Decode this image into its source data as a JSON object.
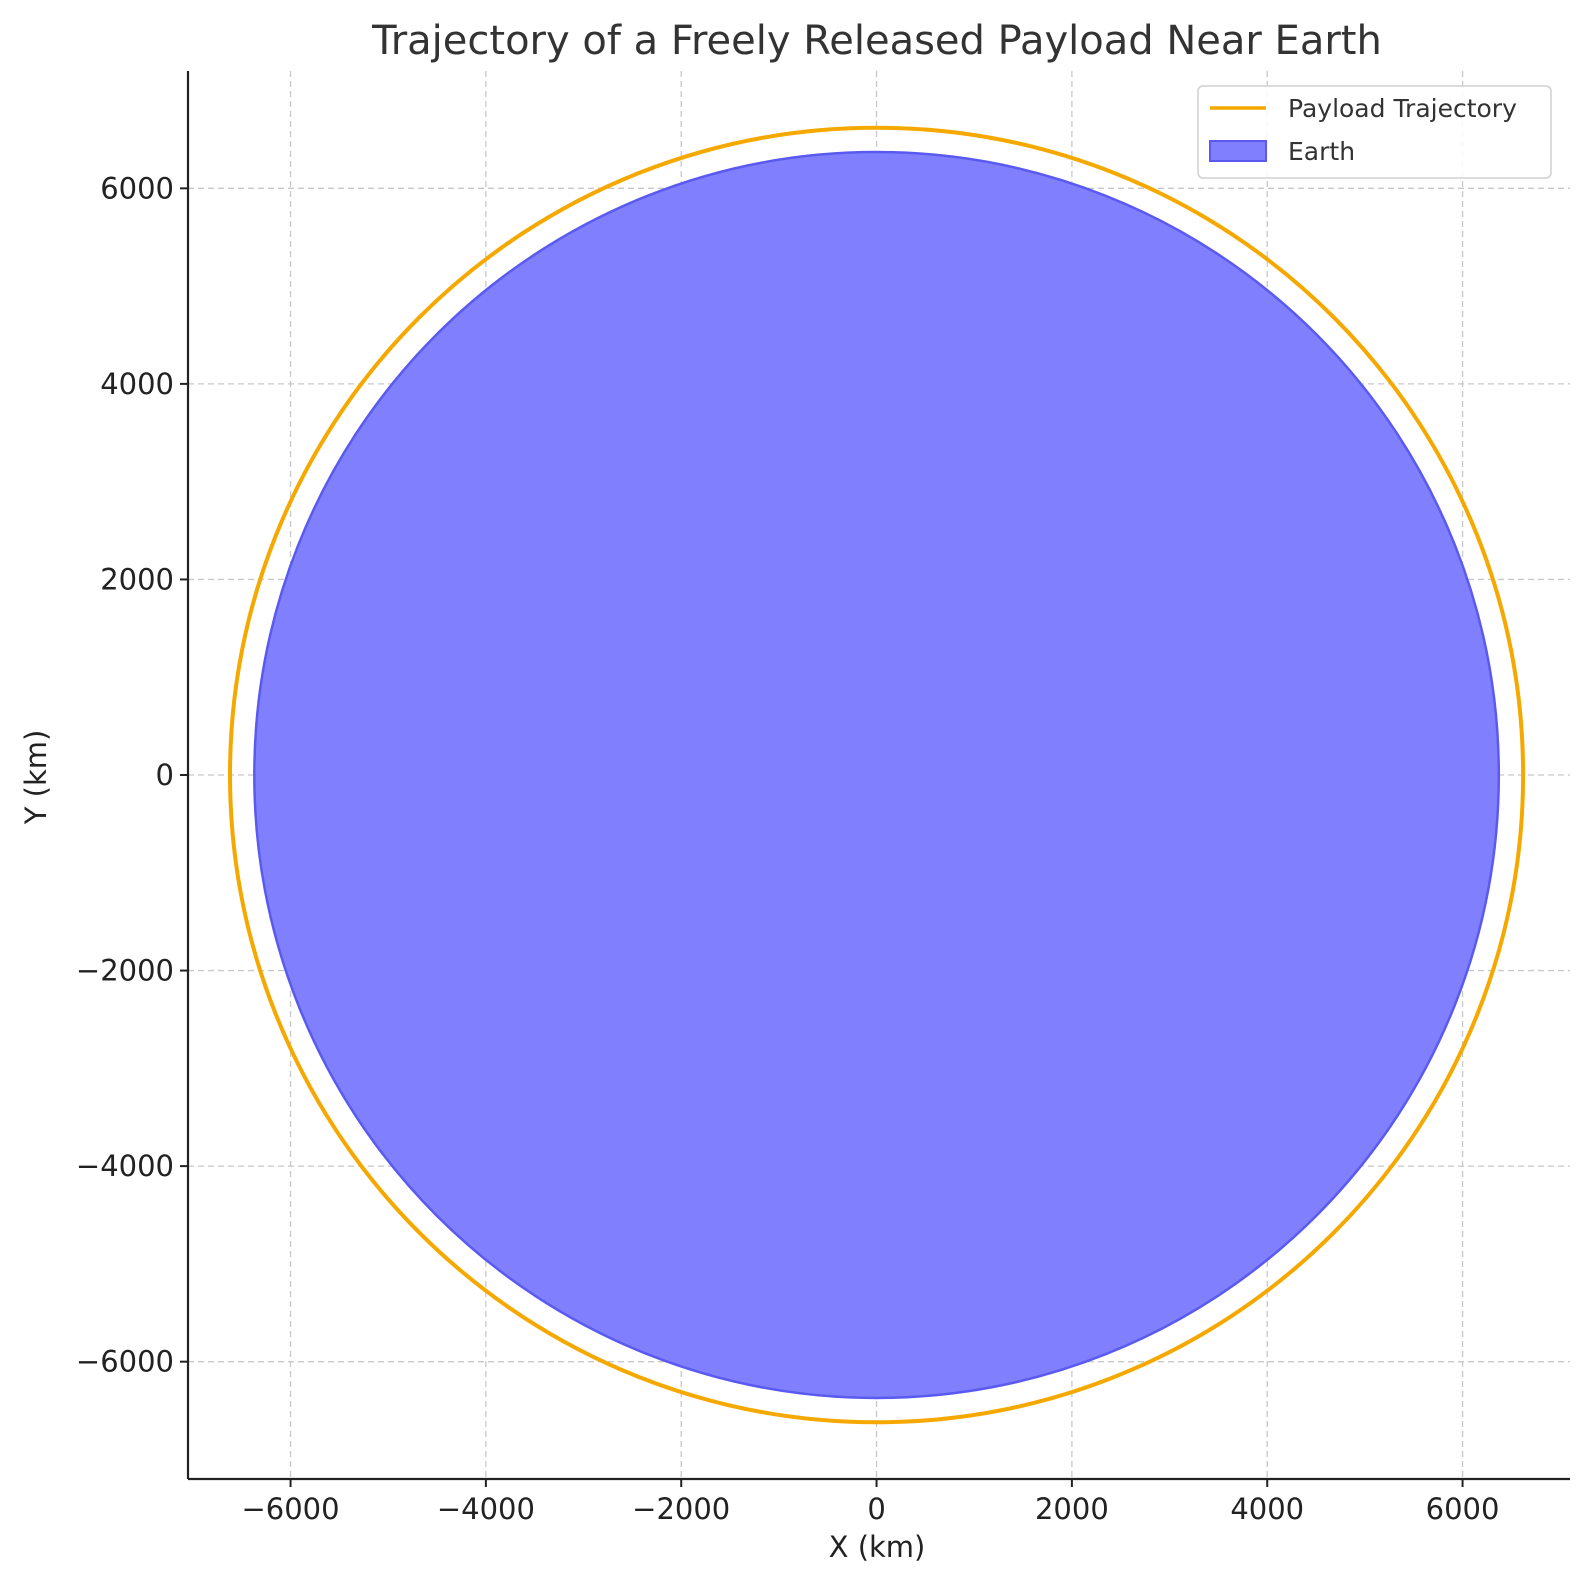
{
  "chart_data": {
    "type": "line",
    "title": "Trajectory of a Freely Released Payload Near Earth",
    "xlabel": "X (km)",
    "ylabel": "Y (km)",
    "xlim": [
      -7050,
      7100
    ],
    "ylim": [
      -7200,
      7200
    ],
    "xticks": [
      -6000,
      -4000,
      -2000,
      0,
      2000,
      4000,
      6000
    ],
    "yticks": [
      -6000,
      -4000,
      -2000,
      0,
      2000,
      4000,
      6000
    ],
    "grid": true,
    "legend_position": "top-right",
    "series": [
      {
        "name": "Payload Trajectory",
        "kind": "line",
        "color": "#f5a800",
        "shape": "circle",
        "center": [
          0,
          0
        ],
        "radius": 6620
      },
      {
        "name": "Earth",
        "kind": "filled-circle",
        "color": "#8080ff",
        "edge_color": "#5a5af0",
        "shape": "circle",
        "center": [
          0,
          0
        ],
        "radius": 6371
      }
    ]
  }
}
